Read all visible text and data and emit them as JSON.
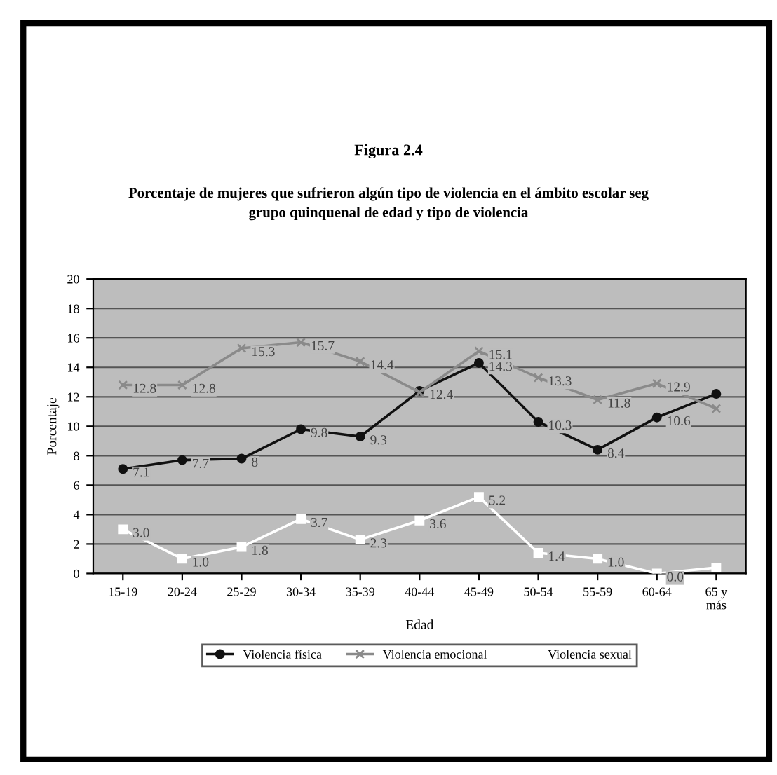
{
  "chart_data": {
    "type": "line",
    "title": "Figura 2.4",
    "subtitle": "Porcentaje de mujeres que sufrieron algún tipo de violencia en el ámbito escolar seg\ngrupo quinquenal de edad y tipo de violencia",
    "xlabel": "Edad",
    "ylabel": "Porcentaje",
    "categories": [
      "15-19",
      "20-24",
      "25-29",
      "30-34",
      "35-39",
      "40-44",
      "45-49",
      "50-54",
      "55-59",
      "60-64",
      "65 y\nmás"
    ],
    "ylim": [
      0,
      20
    ],
    "yticks": [
      0,
      2,
      4,
      6,
      8,
      10,
      12,
      14,
      16,
      18,
      20
    ],
    "grid": "y",
    "legend": "bottom",
    "series": [
      {
        "name": "Violencia física",
        "color": "#111111",
        "marker": "circle",
        "values": [
          7.1,
          7.7,
          7.8,
          9.8,
          9.3,
          12.4,
          14.3,
          10.3,
          8.4,
          10.6,
          12.2
        ],
        "value_labels": [
          "7.1",
          "7.7",
          "8",
          "9.8",
          "9.3",
          "12.4",
          "14.3",
          "10.3",
          "8.4",
          "10.6",
          null
        ]
      },
      {
        "name": "Violencia emocional",
        "color": "#8a8a8a",
        "marker": "cross",
        "values": [
          12.8,
          12.8,
          15.3,
          15.7,
          14.4,
          12.3,
          15.1,
          13.3,
          11.8,
          12.9,
          11.2
        ],
        "value_labels": [
          "12.8",
          "12.8",
          "15.3",
          "15.7",
          "14.4",
          null,
          "15.1",
          "13.3",
          "11.8",
          "12.9",
          null
        ]
      },
      {
        "name": "Violencia sexual",
        "color": "#ffffff",
        "marker": "square",
        "values": [
          3.0,
          1.0,
          1.8,
          3.7,
          2.3,
          3.6,
          5.2,
          1.4,
          1.0,
          0.0,
          0.4
        ],
        "value_labels": [
          "3.0",
          "1.0",
          "1.8",
          "3.7",
          "2.3",
          "3.6",
          "5.2",
          "1.4",
          "1.0",
          "0.0",
          null
        ]
      }
    ]
  }
}
